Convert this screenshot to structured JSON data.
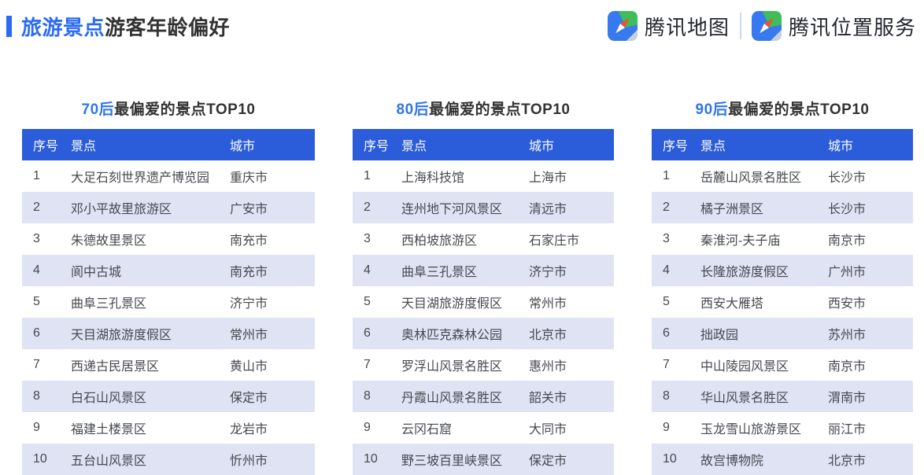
{
  "page_title": {
    "highlight": "旅游景点",
    "rest": "游客年龄偏好"
  },
  "brand": {
    "maps_label": "腾讯地图",
    "location_label": "腾讯位置服务"
  },
  "colors": {
    "accent_blue": "#2b6bf3",
    "table_header_blue": "#2b5cd9",
    "row_stripe": "#dfe3f4",
    "divider_blue": "#c6daf8",
    "icon_blue": "#377af0",
    "icon_green": "#3fbd5a",
    "icon_needle_orange": "#f4502a"
  },
  "tables": [
    {
      "title_highlight": "70后",
      "title_rest": "最偏爱的景点TOP10",
      "headers": [
        "序号",
        "景点",
        "城市"
      ],
      "rows": [
        [
          "1",
          "大足石刻世界遗产博览园",
          "重庆市"
        ],
        [
          "2",
          "邓小平故里旅游区",
          "广安市"
        ],
        [
          "3",
          "朱德故里景区",
          "南充市"
        ],
        [
          "4",
          "阆中古城",
          "南充市"
        ],
        [
          "5",
          "曲阜三孔景区",
          "济宁市"
        ],
        [
          "6",
          "天目湖旅游度假区",
          "常州市"
        ],
        [
          "7",
          "西递古民居景区",
          "黄山市"
        ],
        [
          "8",
          "白石山风景区",
          "保定市"
        ],
        [
          "9",
          "福建土楼景区",
          "龙岩市"
        ],
        [
          "10",
          "五台山风景区",
          "忻州市"
        ]
      ]
    },
    {
      "title_highlight": "80后",
      "title_rest": "最偏爱的景点TOP10",
      "headers": [
        "序号",
        "景点",
        "城市"
      ],
      "rows": [
        [
          "1",
          "上海科技馆",
          "上海市"
        ],
        [
          "2",
          "连州地下河风景区",
          "清远市"
        ],
        [
          "3",
          "西柏坡旅游区",
          "石家庄市"
        ],
        [
          "4",
          "曲阜三孔景区",
          "济宁市"
        ],
        [
          "5",
          "天目湖旅游度假区",
          "常州市"
        ],
        [
          "6",
          "奥林匹克森林公园",
          "北京市"
        ],
        [
          "7",
          "罗浮山风景名胜区",
          "惠州市"
        ],
        [
          "8",
          "丹霞山风景名胜区",
          "韶关市"
        ],
        [
          "9",
          "云冈石窟",
          "大同市"
        ],
        [
          "10",
          "野三坡百里峡景区",
          "保定市"
        ]
      ]
    },
    {
      "title_highlight": "90后",
      "title_rest": "最偏爱的景点TOP10",
      "headers": [
        "序号",
        "景点",
        "城市"
      ],
      "rows": [
        [
          "1",
          "岳麓山风景名胜区",
          "长沙市"
        ],
        [
          "2",
          "橘子洲景区",
          "长沙市"
        ],
        [
          "3",
          "秦淮河-夫子庙",
          "南京市"
        ],
        [
          "4",
          "长隆旅游度假区",
          "广州市"
        ],
        [
          "5",
          "西安大雁塔",
          "西安市"
        ],
        [
          "6",
          "拙政园",
          "苏州市"
        ],
        [
          "7",
          "中山陵园风景区",
          "南京市"
        ],
        [
          "8",
          "华山风景名胜区",
          "渭南市"
        ],
        [
          "9",
          "玉龙雪山旅游景区",
          "丽江市"
        ],
        [
          "10",
          "故宫博物院",
          "北京市"
        ]
      ]
    }
  ]
}
